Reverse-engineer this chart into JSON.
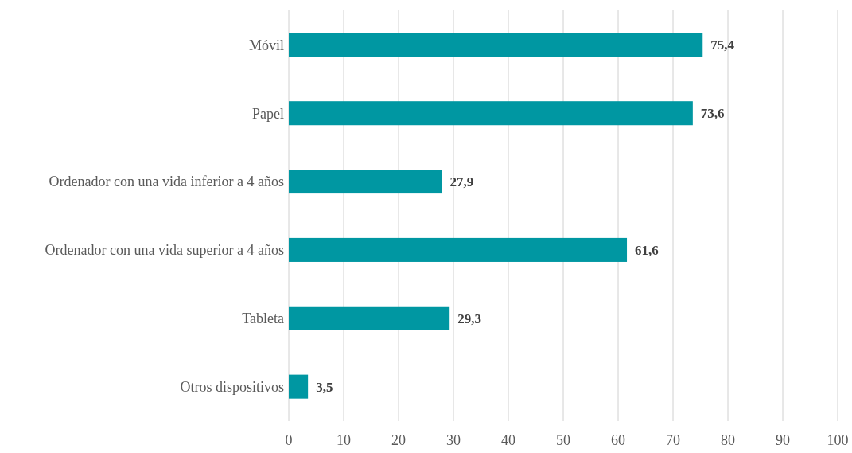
{
  "chart_data": {
    "type": "bar",
    "orientation": "horizontal",
    "categories": [
      "Móvil",
      "Papel",
      "Ordenador con una vida inferior a 4 años",
      "Ordenador con una vida superior a 4 años",
      "Tableta",
      "Otros dispositivos"
    ],
    "values": [
      75.4,
      73.6,
      27.9,
      61.6,
      29.3,
      3.5
    ],
    "value_labels": [
      "75,4",
      "73,6",
      "27,9",
      "61,6",
      "29,3",
      "3,5"
    ],
    "color": "#0097a2",
    "xlim": [
      0,
      100
    ],
    "xticks": [
      0,
      10,
      20,
      30,
      40,
      50,
      60,
      70,
      80,
      90,
      100
    ],
    "grid": "x"
  }
}
